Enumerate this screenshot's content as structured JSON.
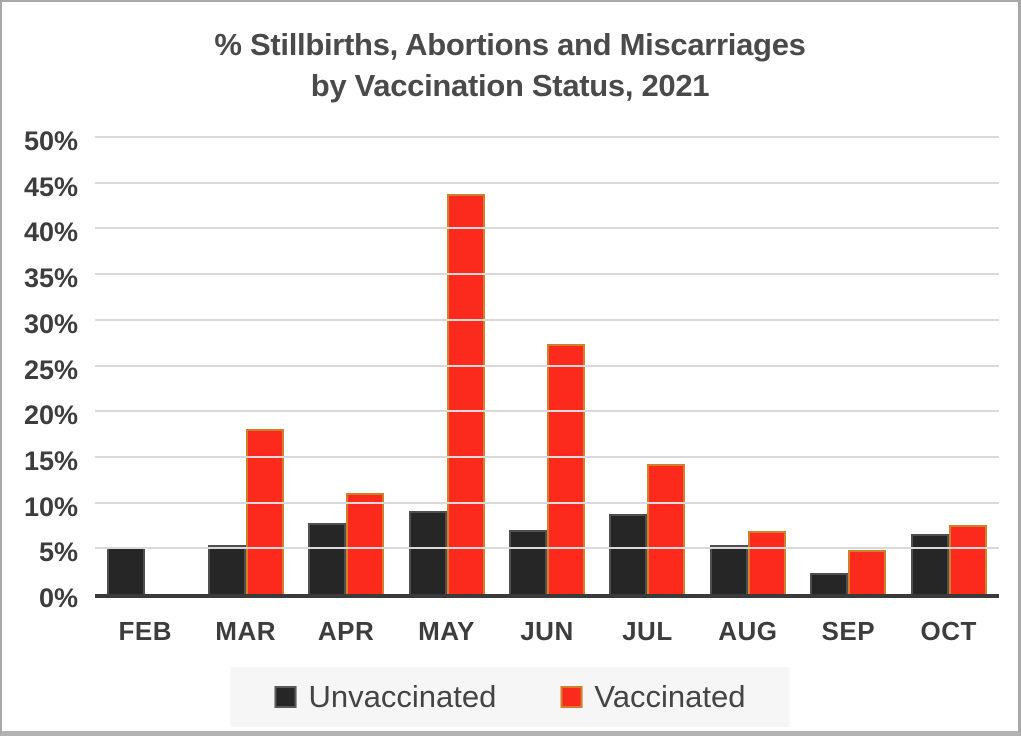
{
  "title": {
    "line1": "% Stillbirths, Abortions and Miscarriages",
    "line2": "by Vaccination Status, 2021"
  },
  "chart_data": {
    "type": "bar",
    "title": "% Stillbirths, Abortions and Miscarriages by Vaccination Status, 2021",
    "categories": [
      "FEB",
      "MAR",
      "APR",
      "MAY",
      "JUN",
      "JUL",
      "AUG",
      "SEP",
      "OCT"
    ],
    "series": [
      {
        "name": "Unvaccinated",
        "color": "#262626",
        "border_color": "#4f4f4f",
        "values": [
          5.1,
          5.4,
          7.8,
          9.1,
          7.0,
          8.7,
          5.4,
          2.3,
          6.6
        ]
      },
      {
        "name": "Vaccinated",
        "color": "#fb2a1d",
        "border_color": "#d07f2d",
        "values": [
          0,
          18.1,
          11.1,
          43.8,
          27.3,
          14.2,
          6.9,
          4.8,
          7.6
        ]
      }
    ],
    "xlabel": "",
    "ylabel": "",
    "ylim": [
      0,
      50
    ],
    "ytick_step": 5,
    "ytick_labels": [
      "0%",
      "5%",
      "10%",
      "15%",
      "20%",
      "25%",
      "30%",
      "35%",
      "40%",
      "45%",
      "50%"
    ],
    "grid": true,
    "gridline_color": "#d9d9d9",
    "axis_color": "#3a3a3a",
    "legend_position": "bottom",
    "legend_background": "#f6f6f6"
  },
  "legend": {
    "items": [
      {
        "label": "Unvaccinated",
        "color": "#262626"
      },
      {
        "label": "Vaccinated",
        "color": "#fb2a1d"
      }
    ]
  }
}
